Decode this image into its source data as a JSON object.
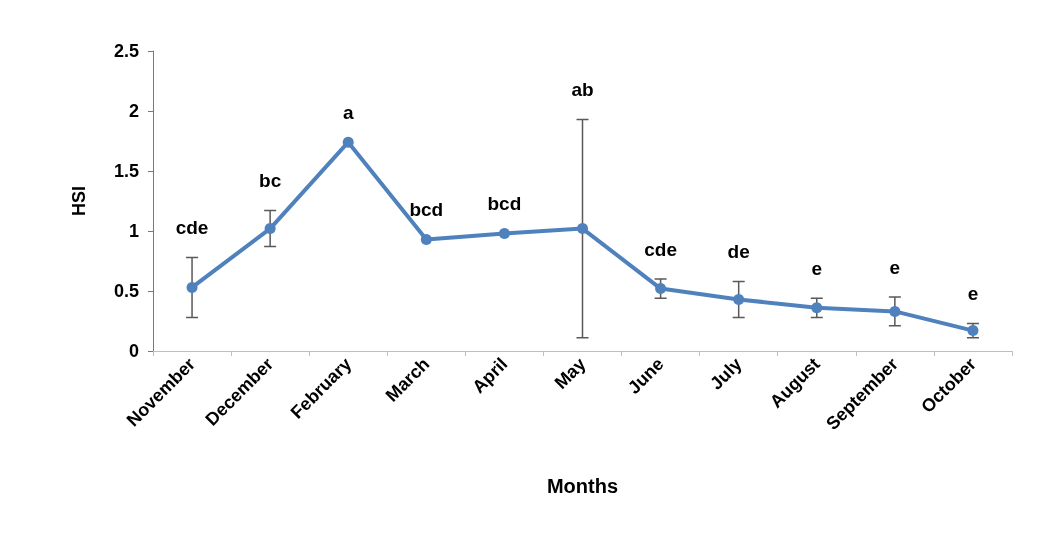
{
  "chart_data": {
    "type": "line",
    "xlabel": "Months",
    "ylabel": "HSI",
    "categories": [
      "November",
      "December",
      "February",
      "March",
      "April",
      "May",
      "June",
      "July",
      "August",
      "September",
      "October"
    ],
    "values": [
      0.53,
      1.02,
      1.74,
      0.93,
      0.98,
      1.02,
      0.52,
      0.43,
      0.36,
      0.33,
      0.17
    ],
    "errors": [
      0.25,
      0.15,
      null,
      null,
      null,
      0.91,
      0.08,
      0.15,
      0.08,
      0.12,
      0.06
    ],
    "color": "#4f81bd",
    "marker": "circle",
    "line_style": "solid",
    "ylim": [
      0,
      2.5
    ],
    "yticks": [
      0,
      0.5,
      1,
      1.5,
      2,
      2.5
    ],
    "annotations": [
      {
        "text": "cde",
        "x": "November",
        "y": 0.78
      },
      {
        "text": "bc",
        "x": "December",
        "y": 1.17
      },
      {
        "text": "a",
        "x": "February",
        "y": 1.74
      },
      {
        "text": "bcd",
        "x": "March",
        "y": 0.93
      },
      {
        "text": "bcd",
        "x": "April",
        "y": 0.98
      },
      {
        "text": "ab",
        "x": "May",
        "y": 1.93
      },
      {
        "text": "cde",
        "x": "June",
        "y": 0.6
      },
      {
        "text": "de",
        "x": "July",
        "y": 0.58
      },
      {
        "text": "e",
        "x": "August",
        "y": 0.44
      },
      {
        "text": "e",
        "x": "September",
        "y": 0.45
      },
      {
        "text": "e",
        "x": "October",
        "y": 0.23
      }
    ]
  }
}
